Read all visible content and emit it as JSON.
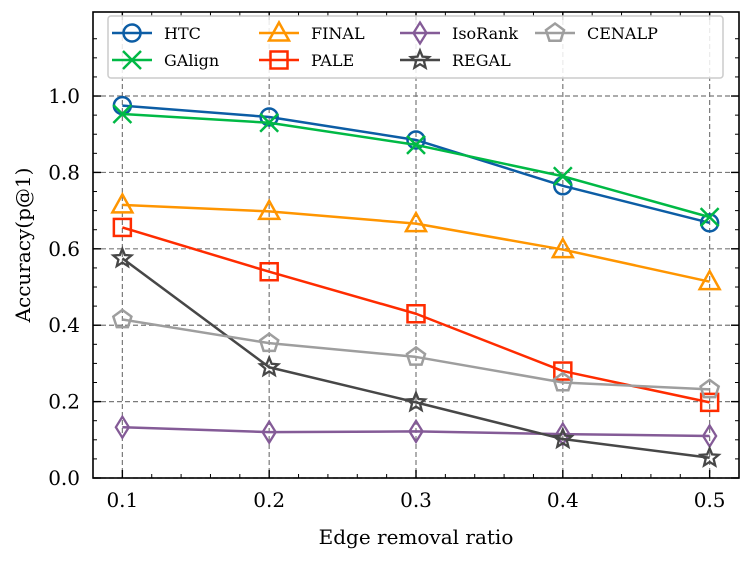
{
  "chart_data": {
    "type": "line",
    "title": "",
    "xlabel": "Edge removal ratio",
    "ylabel": "Accuracy(p@1)",
    "x": [
      0.1,
      0.2,
      0.3,
      0.4,
      0.5
    ],
    "x_tick_labels": [
      "0.1",
      "0.2",
      "0.3",
      "0.4",
      "0.5"
    ],
    "y_ticks": [
      0.0,
      0.2,
      0.4,
      0.6,
      0.8,
      1.0
    ],
    "y_tick_labels": [
      "0.0",
      "0.2",
      "0.4",
      "0.6",
      "0.8",
      "1.0"
    ],
    "xlim": [
      0.08,
      0.52
    ],
    "ylim": [
      0.0,
      1.22
    ],
    "grid": true,
    "legend_position": "top",
    "series": [
      {
        "name": "HTC",
        "color": "#0c5da5",
        "marker": "circle",
        "values": [
          0.975,
          0.945,
          0.885,
          0.765,
          0.668
        ]
      },
      {
        "name": "GAlign",
        "color": "#00b945",
        "marker": "x",
        "values": [
          0.953,
          0.93,
          0.872,
          0.79,
          0.683
        ]
      },
      {
        "name": "FINAL",
        "color": "#ff9500",
        "marker": "triangle",
        "values": [
          0.715,
          0.698,
          0.666,
          0.598,
          0.514
        ]
      },
      {
        "name": "PALE",
        "color": "#ff2c00",
        "marker": "square",
        "values": [
          0.656,
          0.54,
          0.43,
          0.28,
          0.198
        ]
      },
      {
        "name": "IsoRank",
        "color": "#845b97",
        "marker": "diamond",
        "values": [
          0.133,
          0.12,
          0.122,
          0.115,
          0.11
        ]
      },
      {
        "name": "REGAL",
        "color": "#474747",
        "marker": "star",
        "values": [
          0.575,
          0.29,
          0.198,
          0.102,
          0.053
        ]
      },
      {
        "name": "CENALP",
        "color": "#9e9e9e",
        "marker": "pentagon",
        "values": [
          0.415,
          0.353,
          0.317,
          0.25,
          0.232
        ]
      }
    ]
  }
}
